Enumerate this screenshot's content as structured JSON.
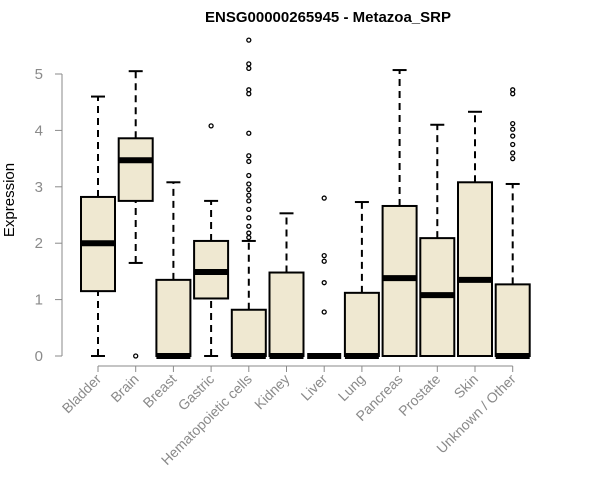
{
  "chart_data": {
    "type": "boxplot",
    "title": "ENSG00000265945 - Metazoa_SRP",
    "xlabel": "",
    "ylabel": "Expression",
    "ylim": [
      0,
      5.6
    ],
    "yticks": [
      0,
      1,
      2,
      3,
      4,
      5
    ],
    "colors": {
      "box_fill": "#efe8d1",
      "stroke": "#000000",
      "axis_text": "#8a8a8a",
      "axis_line": "#8a8a8a"
    },
    "categories": [
      "Bladder",
      "Brain",
      "Breast",
      "Gastric",
      "Hematopoietic cells",
      "Kidney",
      "Liver",
      "Lung",
      "Pancreas",
      "Prostate",
      "Skin",
      "Unknown / Other"
    ],
    "boxes": [
      {
        "min": 0,
        "q1": 1.15,
        "median": 2.0,
        "q3": 2.82,
        "max": 4.6,
        "outliers": []
      },
      {
        "min": 1.65,
        "q1": 2.75,
        "median": 3.47,
        "q3": 3.86,
        "max": 5.05,
        "outliers": [
          0.0
        ]
      },
      {
        "min": 0,
        "q1": 0,
        "median": 0,
        "q3": 1.35,
        "max": 3.08,
        "outliers": []
      },
      {
        "min": 0,
        "q1": 1.02,
        "median": 1.49,
        "q3": 2.04,
        "max": 2.75,
        "outliers": [
          4.08
        ]
      },
      {
        "min": 0,
        "q1": 0,
        "median": 0,
        "q3": 0.82,
        "max": 2.04,
        "outliers": [
          2.1,
          2.18,
          2.3,
          2.45,
          2.6,
          2.75,
          2.85,
          2.95,
          3.05,
          3.2,
          3.45,
          3.55,
          3.95,
          4.65,
          4.72,
          5.1,
          5.18,
          5.6
        ]
      },
      {
        "min": 0,
        "q1": 0,
        "median": 0,
        "q3": 1.48,
        "max": 2.53,
        "outliers": []
      },
      {
        "min": 0,
        "q1": 0,
        "median": 0,
        "q3": 0,
        "max": 0,
        "outliers": [
          0.78,
          1.3,
          1.68,
          1.78,
          2.8
        ]
      },
      {
        "min": 0,
        "q1": 0,
        "median": 0,
        "q3": 1.12,
        "max": 2.73,
        "outliers": []
      },
      {
        "min": 0,
        "q1": 0,
        "median": 1.38,
        "q3": 2.66,
        "max": 5.07,
        "outliers": []
      },
      {
        "min": 0,
        "q1": 0,
        "median": 1.08,
        "q3": 2.09,
        "max": 4.1,
        "outliers": []
      },
      {
        "min": 0,
        "q1": 0,
        "median": 1.35,
        "q3": 3.08,
        "max": 4.33,
        "outliers": []
      },
      {
        "min": 0,
        "q1": 0,
        "median": 0,
        "q3": 1.27,
        "max": 3.05,
        "outliers": [
          3.5,
          3.6,
          3.75,
          3.9,
          4.02,
          4.12,
          4.65,
          4.72
        ]
      }
    ]
  }
}
